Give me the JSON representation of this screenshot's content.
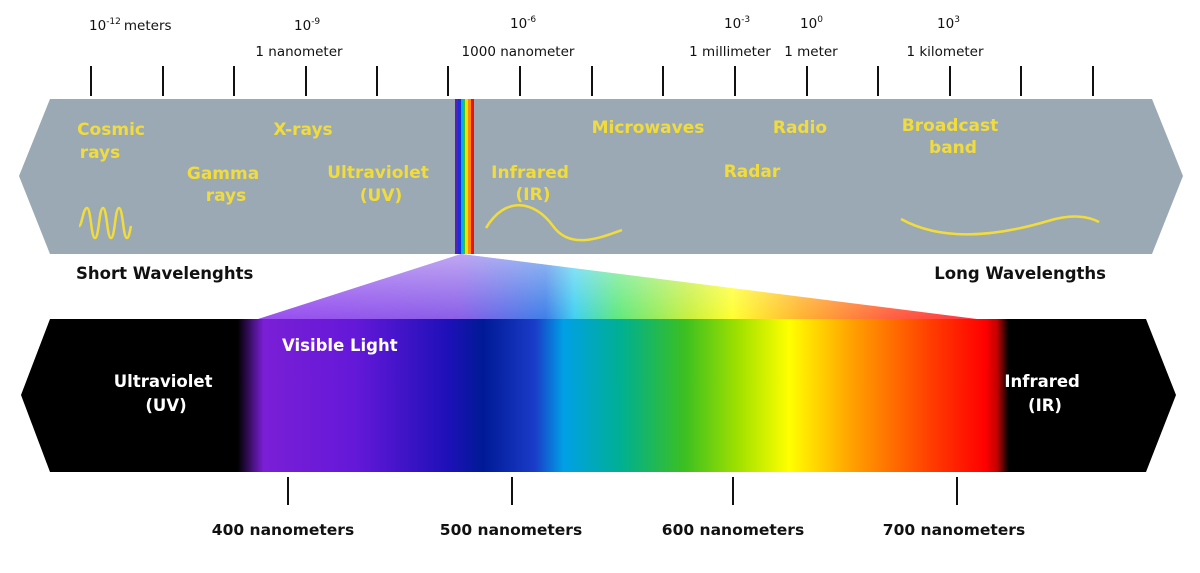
{
  "scale": {
    "ticks": [
      {
        "exp": "10",
        "sup": "-12",
        "label": "meters"
      },
      {
        "exp": "10",
        "sup": "-9",
        "label": "1 nanometer"
      },
      {
        "exp": "10",
        "sup": "-6",
        "label": "1000 nanometer"
      },
      {
        "exp": "10",
        "sup": "-3",
        "label": "1 millimeter"
      },
      {
        "exp": "10",
        "sup": "0",
        "label": "1 meter"
      },
      {
        "exp": "10",
        "sup": "3",
        "label": "1 kilometer"
      }
    ]
  },
  "bands": {
    "cosmic": [
      "Cosmic",
      "rays"
    ],
    "gamma": [
      "Gamma",
      "rays"
    ],
    "xrays": [
      "X-rays"
    ],
    "uv": [
      "Ultraviolet",
      "(UV)"
    ],
    "ir": [
      "Infrared",
      "(IR)"
    ],
    "microwaves": [
      "Microwaves"
    ],
    "radar": [
      "Radar"
    ],
    "radio": [
      "Radio"
    ],
    "broadcast": [
      "Broadcast",
      "band"
    ]
  },
  "labels": {
    "short": "Short Wavelenghts",
    "long": "Long Wavelengths",
    "visible": "Visible Light",
    "uv": [
      "Ultraviolet",
      "(UV)"
    ],
    "ir": [
      "Infrared",
      "(IR)"
    ]
  },
  "nanometers": [
    {
      "value": 400,
      "label": "400 nanometers"
    },
    {
      "value": 500,
      "label": "500 nanometers"
    },
    {
      "value": 600,
      "label": "600 nanometers"
    },
    {
      "value": 700,
      "label": "700 nanometers"
    }
  ],
  "colors": {
    "band_fill": "#9aa9b4",
    "band_text": "#f2dc3c",
    "spectrum_bar": "#000000"
  }
}
